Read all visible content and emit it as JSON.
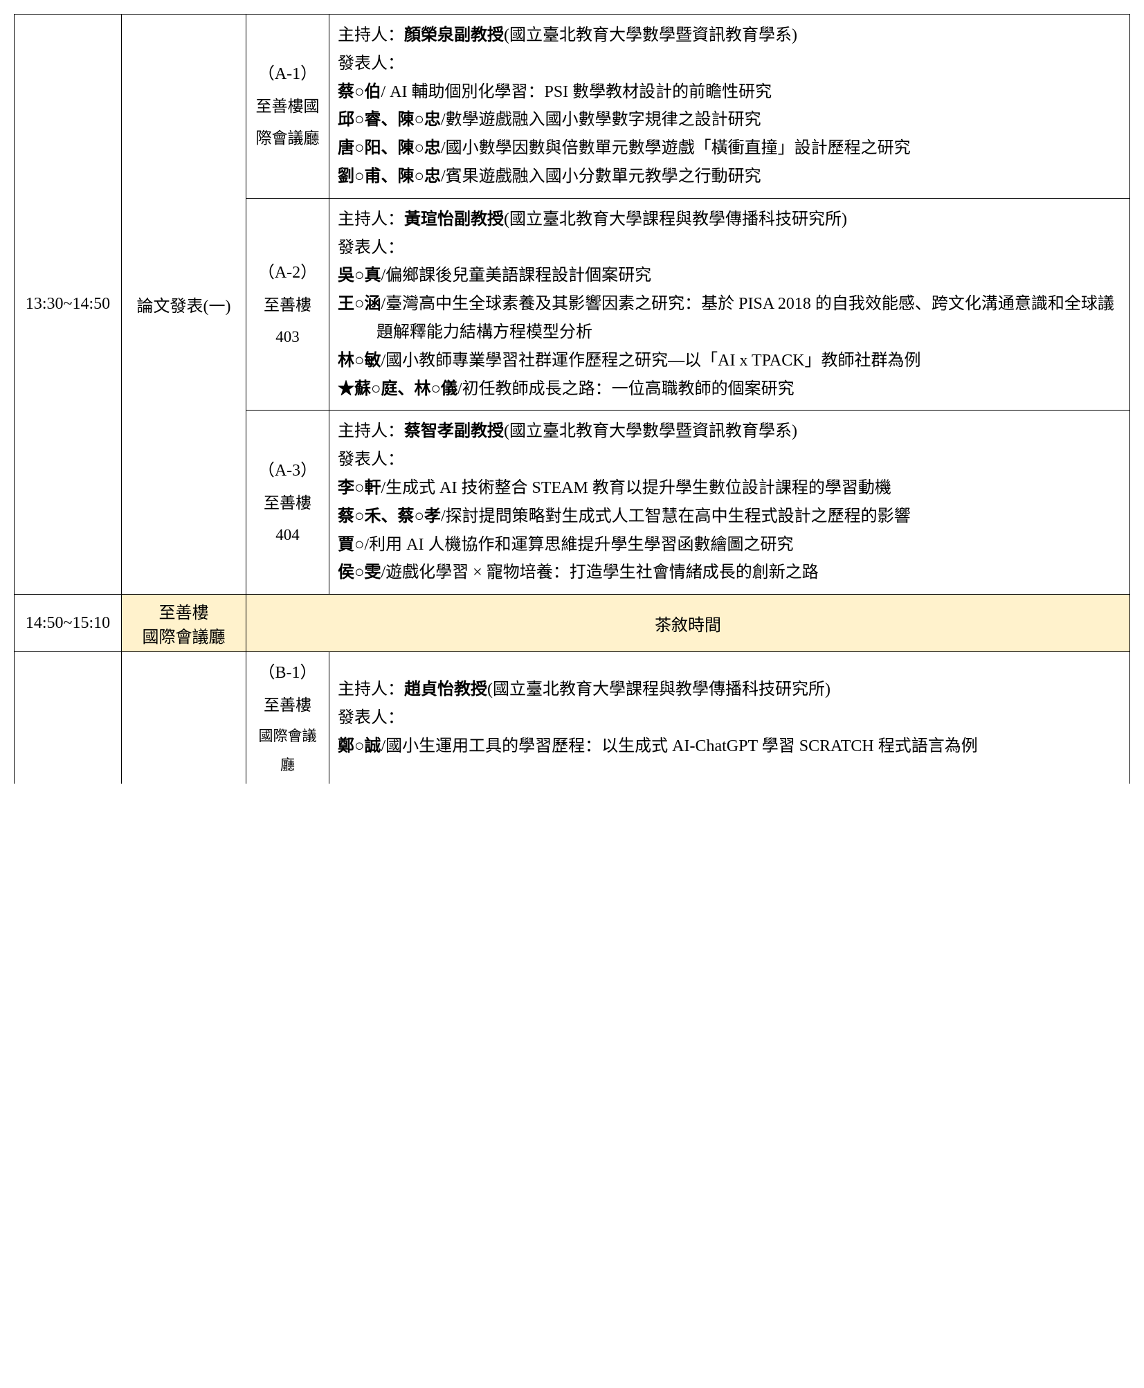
{
  "colors": {
    "border": "#000000",
    "highlight": "#fff2cc",
    "text": "#000000",
    "background": "#ffffff"
  },
  "table": {
    "rows": [
      {
        "time": "13:30~14:50",
        "event": "論文發表(一)",
        "sessions": [
          {
            "id": "（A-1）",
            "room": "至善樓國際會議廳",
            "host_label": "主持人：",
            "host_name": "顏榮泉副教授",
            "host_affil": "(國立臺北教育大學數學暨資訊教育學系)",
            "presenter_label": "發表人：",
            "papers": [
              {
                "authors": "蔡○伯",
                "title": "/ AI 輔助個別化學習：PSI 數學教材設計的前瞻性研究"
              },
              {
                "authors": "邱○睿、陳○忠",
                "title": "/數學遊戲融入國小數學數字規律之設計研究"
              },
              {
                "authors": "唐○阳、陳○忠",
                "title": "/國小數學因數與倍數單元數學遊戲「橫衝直撞」設計歷程之研究"
              },
              {
                "authors": "劉○甫、陳○忠",
                "title": "/賓果遊戲融入國小分數單元教學之行動研究"
              }
            ]
          },
          {
            "id": "（A-2）",
            "room": "至善樓 403",
            "host_label": "主持人：",
            "host_name": "黃瑄怡副教授",
            "host_affil": "(國立臺北教育大學課程與教學傳播科技研究所)",
            "presenter_label": "發表人：",
            "papers": [
              {
                "authors": "吳○真",
                "title": "/偏鄉課後兒童美語課程設計個案研究"
              },
              {
                "authors": "王○涵",
                "title": "/臺灣高中生全球素養及其影響因素之研究：基於 PISA 2018 的自我效能感、跨文化溝通意識和全球議題解釋能力結構方程模型分析"
              },
              {
                "authors": "林○敏",
                "title": "/國小教師專業學習社群運作歷程之研究—以「AI x TPACK」教師社群為例"
              },
              {
                "authors": "★蘇○庭、林○儀",
                "title": "/初任教師成長之路：一位高職教師的個案研究"
              }
            ]
          },
          {
            "id": "（A-3）",
            "room": "至善樓 404",
            "host_label": "主持人：",
            "host_name": "蔡智孝副教授",
            "host_affil": "(國立臺北教育大學數學暨資訊教育學系)",
            "presenter_label": "發表人：",
            "papers": [
              {
                "authors": "李○軒",
                "title": "/生成式 AI 技術整合 STEAM 教育以提升學生數位設計課程的學習動機"
              },
              {
                "authors": "蔡○禾、蔡○孝",
                "title": "/探討提問策略對生成式人工智慧在高中生程式設計之歷程的影響"
              },
              {
                "authors": "賈○",
                "title": "/利用 AI 人機協作和運算思維提升學生學習函數繪圖之研究"
              },
              {
                "authors": "侯○雯",
                "title": "/遊戲化學習 × 寵物培養：打造學生社會情緒成長的創新之路"
              }
            ]
          }
        ]
      },
      {
        "time": "14:50~15:10",
        "location_line1": "至善樓",
        "location_line2": "國際會議廳",
        "activity": "茶敘時間"
      },
      {
        "time": "",
        "event": "",
        "sessions": [
          {
            "id": "（B-1）",
            "room_line1": "至善樓",
            "room_line2": "國際會議廳",
            "host_label": "主持人：",
            "host_name": "趙貞怡教授",
            "host_affil": "(國立臺北教育大學課程與教學傳播科技研究所)",
            "presenter_label": "發表人：",
            "papers": [
              {
                "authors": "鄭○誠",
                "title": "/國小生運用工具的學習歷程：以生成式 AI-ChatGPT 學習 SCRATCH 程式語言為例"
              }
            ]
          }
        ]
      }
    ]
  }
}
